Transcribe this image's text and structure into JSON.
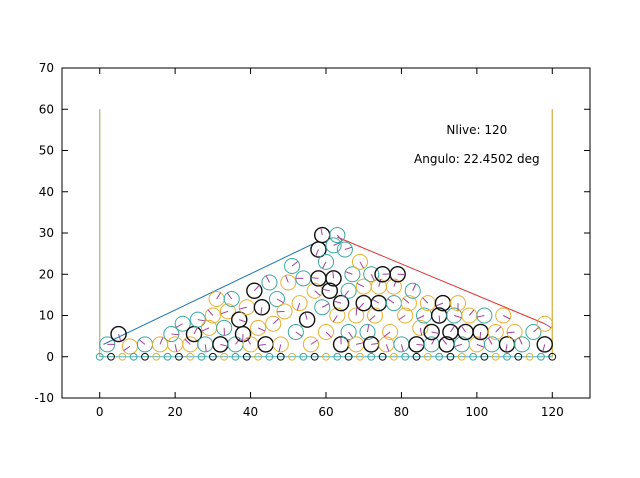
{
  "chart_data": {
    "type": "scatter",
    "xlim": [
      -10,
      130
    ],
    "ylim": [
      -10,
      70
    ],
    "x_ticks": [
      0,
      20,
      40,
      60,
      80,
      100,
      120
    ],
    "y_ticks": [
      -10,
      0,
      10,
      20,
      30,
      40,
      50,
      60,
      70
    ],
    "grid": false,
    "annotations": [
      {
        "text": "Nlive: 120",
        "x": 100,
        "y": 55
      },
      {
        "text": "Angulo: 22.4502 deg",
        "x": 100,
        "y": 48
      }
    ],
    "container": {
      "x": [
        0,
        0,
        120,
        120
      ],
      "y": [
        60,
        0,
        0,
        60
      ],
      "color": "#4fb3bf"
    },
    "slope_left": {
      "x": [
        1,
        58
      ],
      "y": [
        3,
        28
      ],
      "color": "#1f77b4"
    },
    "slope_right": {
      "x": [
        63,
        118
      ],
      "y": [
        29,
        8
      ],
      "color": "#e03030"
    },
    "particle_radius": 2,
    "colors": {
      "yellow": "#e8b030",
      "teal": "#3aa8a0",
      "black": "#111111",
      "orient": "#a040a0"
    },
    "base_particles": [
      0,
      3,
      6,
      9,
      12,
      15,
      18,
      21,
      24,
      27,
      30,
      33,
      36,
      39,
      42,
      45,
      48,
      51,
      54,
      57,
      60,
      63,
      66,
      69,
      72,
      75,
      78,
      81,
      84,
      87,
      90,
      93,
      96,
      99,
      102,
      105,
      108,
      111,
      114,
      117,
      120
    ],
    "particles": [
      {
        "x": 2,
        "y": 3,
        "c": "teal"
      },
      {
        "x": 5,
        "y": 5.5,
        "c": "black"
      },
      {
        "x": 8,
        "y": 2.5,
        "c": "yellow"
      },
      {
        "x": 12,
        "y": 3,
        "c": "teal"
      },
      {
        "x": 16,
        "y": 3,
        "c": "yellow"
      },
      {
        "x": 19,
        "y": 5.5,
        "c": "teal"
      },
      {
        "x": 20,
        "y": 3,
        "c": "yellow"
      },
      {
        "x": 22,
        "y": 8,
        "c": "teal"
      },
      {
        "x": 24,
        "y": 3,
        "c": "yellow"
      },
      {
        "x": 25,
        "y": 5.5,
        "c": "black"
      },
      {
        "x": 26,
        "y": 9,
        "c": "teal"
      },
      {
        "x": 28,
        "y": 3,
        "c": "teal"
      },
      {
        "x": 29,
        "y": 7,
        "c": "yellow"
      },
      {
        "x": 30,
        "y": 10,
        "c": "yellow"
      },
      {
        "x": 31,
        "y": 14,
        "c": "yellow"
      },
      {
        "x": 32,
        "y": 3,
        "c": "black"
      },
      {
        "x": 33,
        "y": 7,
        "c": "teal"
      },
      {
        "x": 34,
        "y": 11,
        "c": "yellow"
      },
      {
        "x": 35,
        "y": 14,
        "c": "teal"
      },
      {
        "x": 36,
        "y": 3,
        "c": "teal"
      },
      {
        "x": 37,
        "y": 9,
        "c": "black"
      },
      {
        "x": 38,
        "y": 5.5,
        "c": "black"
      },
      {
        "x": 39,
        "y": 12,
        "c": "yellow"
      },
      {
        "x": 40,
        "y": 3,
        "c": "yellow"
      },
      {
        "x": 41,
        "y": 16,
        "c": "black"
      },
      {
        "x": 42,
        "y": 7,
        "c": "yellow"
      },
      {
        "x": 43,
        "y": 12,
        "c": "black"
      },
      {
        "x": 44,
        "y": 3,
        "c": "black"
      },
      {
        "x": 45,
        "y": 18,
        "c": "teal"
      },
      {
        "x": 46,
        "y": 8,
        "c": "yellow"
      },
      {
        "x": 47,
        "y": 14,
        "c": "teal"
      },
      {
        "x": 48,
        "y": 3,
        "c": "yellow"
      },
      {
        "x": 49,
        "y": 11,
        "c": "yellow"
      },
      {
        "x": 50,
        "y": 18,
        "c": "yellow"
      },
      {
        "x": 51,
        "y": 22,
        "c": "teal"
      },
      {
        "x": 52,
        "y": 6,
        "c": "teal"
      },
      {
        "x": 53,
        "y": 13,
        "c": "yellow"
      },
      {
        "x": 54,
        "y": 19,
        "c": "teal"
      },
      {
        "x": 55,
        "y": 9,
        "c": "black"
      },
      {
        "x": 56,
        "y": 3,
        "c": "yellow"
      },
      {
        "x": 57,
        "y": 16,
        "c": "yellow"
      },
      {
        "x": 58,
        "y": 26,
        "c": "black"
      },
      {
        "x": 58,
        "y": 19,
        "c": "black"
      },
      {
        "x": 59,
        "y": 29.5,
        "c": "black"
      },
      {
        "x": 59,
        "y": 12,
        "c": "teal"
      },
      {
        "x": 60,
        "y": 6,
        "c": "yellow"
      },
      {
        "x": 60,
        "y": 23,
        "c": "teal"
      },
      {
        "x": 61,
        "y": 16,
        "c": "black"
      },
      {
        "x": 62,
        "y": 19,
        "c": "black"
      },
      {
        "x": 62,
        "y": 27,
        "c": "teal"
      },
      {
        "x": 63,
        "y": 29.5,
        "c": "teal"
      },
      {
        "x": 63,
        "y": 10,
        "c": "yellow"
      },
      {
        "x": 64,
        "y": 13,
        "c": "black"
      },
      {
        "x": 64,
        "y": 3,
        "c": "black"
      },
      {
        "x": 65,
        "y": 26,
        "c": "teal"
      },
      {
        "x": 66,
        "y": 6,
        "c": "teal"
      },
      {
        "x": 66,
        "y": 16,
        "c": "teal"
      },
      {
        "x": 67,
        "y": 20,
        "c": "teal"
      },
      {
        "x": 68,
        "y": 10,
        "c": "yellow"
      },
      {
        "x": 68,
        "y": 3,
        "c": "yellow"
      },
      {
        "x": 69,
        "y": 23,
        "c": "yellow"
      },
      {
        "x": 70,
        "y": 13,
        "c": "black"
      },
      {
        "x": 70,
        "y": 17,
        "c": "yellow"
      },
      {
        "x": 71,
        "y": 6,
        "c": "teal"
      },
      {
        "x": 72,
        "y": 3,
        "c": "black"
      },
      {
        "x": 72,
        "y": 20,
        "c": "teal"
      },
      {
        "x": 73,
        "y": 10,
        "c": "yellow"
      },
      {
        "x": 74,
        "y": 13,
        "c": "black"
      },
      {
        "x": 74,
        "y": 17,
        "c": "yellow"
      },
      {
        "x": 75,
        "y": 20,
        "c": "black"
      },
      {
        "x": 76,
        "y": 3,
        "c": "yellow"
      },
      {
        "x": 77,
        "y": 6,
        "c": "yellow"
      },
      {
        "x": 78,
        "y": 13,
        "c": "teal"
      },
      {
        "x": 78,
        "y": 17,
        "c": "yellow"
      },
      {
        "x": 79,
        "y": 20,
        "c": "black"
      },
      {
        "x": 80,
        "y": 3,
        "c": "teal"
      },
      {
        "x": 81,
        "y": 10,
        "c": "yellow"
      },
      {
        "x": 82,
        "y": 13,
        "c": "yellow"
      },
      {
        "x": 83,
        "y": 16,
        "c": "teal"
      },
      {
        "x": 84,
        "y": 3,
        "c": "black"
      },
      {
        "x": 85,
        "y": 7,
        "c": "yellow"
      },
      {
        "x": 86,
        "y": 10,
        "c": "teal"
      },
      {
        "x": 87,
        "y": 13,
        "c": "yellow"
      },
      {
        "x": 88,
        "y": 3,
        "c": "teal"
      },
      {
        "x": 88,
        "y": 6,
        "c": "black"
      },
      {
        "x": 90,
        "y": 10,
        "c": "black"
      },
      {
        "x": 91,
        "y": 13,
        "c": "black"
      },
      {
        "x": 92,
        "y": 3,
        "c": "black"
      },
      {
        "x": 93,
        "y": 6,
        "c": "black"
      },
      {
        "x": 94,
        "y": 10,
        "c": "teal"
      },
      {
        "x": 95,
        "y": 13,
        "c": "yellow"
      },
      {
        "x": 96,
        "y": 3,
        "c": "teal"
      },
      {
        "x": 97,
        "y": 6,
        "c": "black"
      },
      {
        "x": 98,
        "y": 10,
        "c": "yellow"
      },
      {
        "x": 100,
        "y": 3,
        "c": "yellow"
      },
      {
        "x": 101,
        "y": 6,
        "c": "black"
      },
      {
        "x": 102,
        "y": 10,
        "c": "teal"
      },
      {
        "x": 104,
        "y": 3,
        "c": "teal"
      },
      {
        "x": 105,
        "y": 6,
        "c": "yellow"
      },
      {
        "x": 107,
        "y": 10,
        "c": "yellow"
      },
      {
        "x": 108,
        "y": 3,
        "c": "black"
      },
      {
        "x": 110,
        "y": 6,
        "c": "yellow"
      },
      {
        "x": 112,
        "y": 3,
        "c": "teal"
      },
      {
        "x": 115,
        "y": 6,
        "c": "teal"
      },
      {
        "x": 118,
        "y": 8,
        "c": "yellow"
      },
      {
        "x": 118,
        "y": 3,
        "c": "black"
      }
    ]
  }
}
